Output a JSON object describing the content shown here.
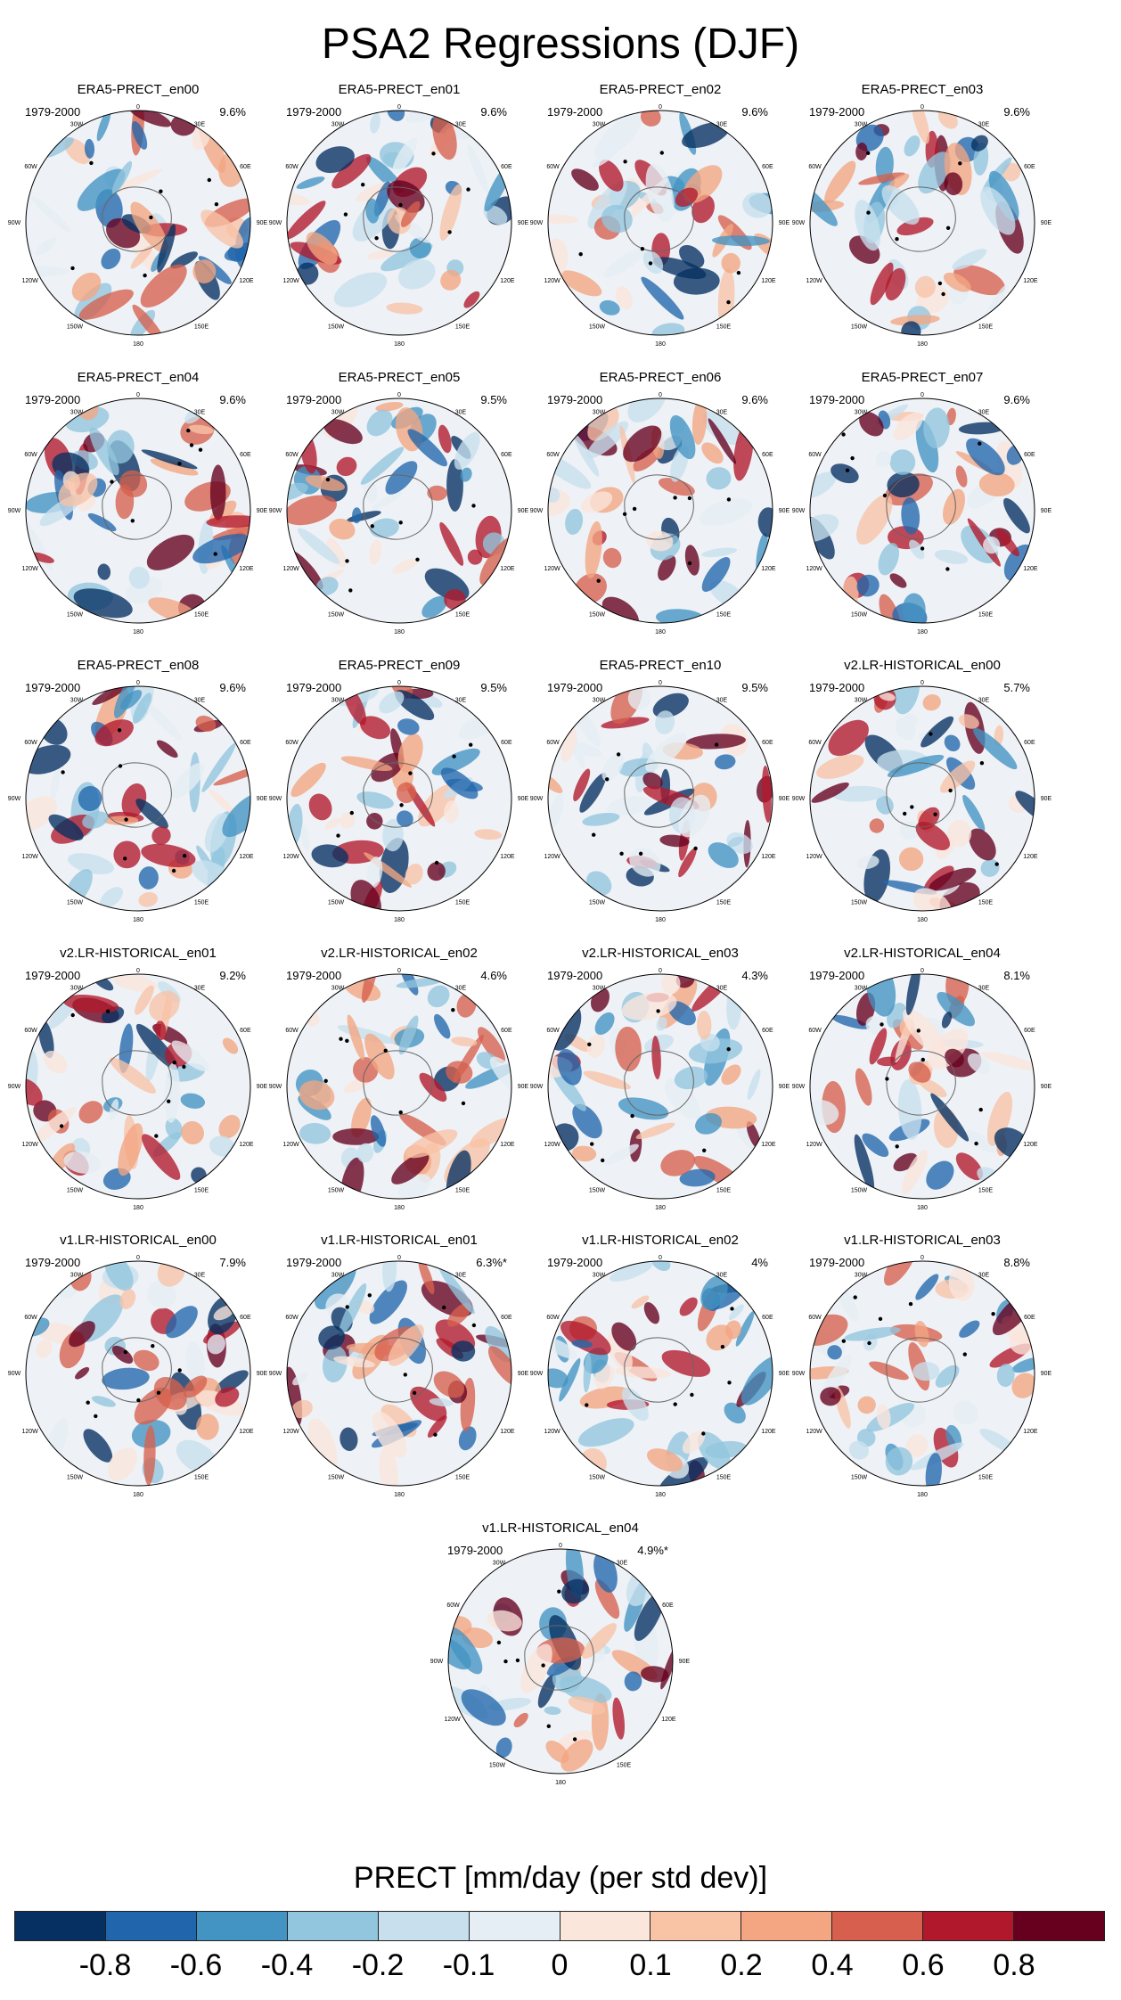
{
  "title": "PSA2 Regressions (DJF)",
  "chart_data": {
    "type": "heatmap",
    "projection": "south-polar-stereographic",
    "variable": "PRECT",
    "colorbar_label": "PRECT [mm/day (per std dev)]",
    "colorbar_ticks": [
      "-0.8",
      "-0.6",
      "-0.4",
      "-0.2",
      "-0.1",
      "0",
      "0.1",
      "0.2",
      "0.4",
      "0.6",
      "0.8"
    ],
    "colorbar_colors": [
      "#053061",
      "#2166ac",
      "#4393c3",
      "#92c5de",
      "#c8e0ee",
      "#e6eef5",
      "#fbe6dc",
      "#f9c3a6",
      "#f4a582",
      "#d6604d",
      "#b2182b",
      "#67001f"
    ],
    "map_labels": {
      "top": "0",
      "upper_left": "30W",
      "upper_right": "30E",
      "mid_left": "60W",
      "mid_right": "60E",
      "left": "90W",
      "right": "90E",
      "lower_left": "120W",
      "lower_right": "120E",
      "bottom_left": "150W",
      "bottom_right": "150E",
      "bottom": "180"
    },
    "panels": [
      {
        "name": "ERA5-PRECT_en00",
        "period": "1979-2000",
        "variance": "9.6%"
      },
      {
        "name": "ERA5-PRECT_en01",
        "period": "1979-2000",
        "variance": "9.6%"
      },
      {
        "name": "ERA5-PRECT_en02",
        "period": "1979-2000",
        "variance": "9.6%"
      },
      {
        "name": "ERA5-PRECT_en03",
        "period": "1979-2000",
        "variance": "9.6%"
      },
      {
        "name": "ERA5-PRECT_en04",
        "period": "1979-2000",
        "variance": "9.6%"
      },
      {
        "name": "ERA5-PRECT_en05",
        "period": "1979-2000",
        "variance": "9.5%"
      },
      {
        "name": "ERA5-PRECT_en06",
        "period": "1979-2000",
        "variance": "9.6%"
      },
      {
        "name": "ERA5-PRECT_en07",
        "period": "1979-2000",
        "variance": "9.6%"
      },
      {
        "name": "ERA5-PRECT_en08",
        "period": "1979-2000",
        "variance": "9.6%"
      },
      {
        "name": "ERA5-PRECT_en09",
        "period": "1979-2000",
        "variance": "9.5%"
      },
      {
        "name": "ERA5-PRECT_en10",
        "period": "1979-2000",
        "variance": "9.5%"
      },
      {
        "name": "v2.LR-HISTORICAL_en00",
        "period": "1979-2000",
        "variance": "5.7%"
      },
      {
        "name": "v2.LR-HISTORICAL_en01",
        "period": "1979-2000",
        "variance": "9.2%"
      },
      {
        "name": "v2.LR-HISTORICAL_en02",
        "period": "1979-2000",
        "variance": "4.6%"
      },
      {
        "name": "v2.LR-HISTORICAL_en03",
        "period": "1979-2000",
        "variance": "4.3%"
      },
      {
        "name": "v2.LR-HISTORICAL_en04",
        "period": "1979-2000",
        "variance": "8.1%"
      },
      {
        "name": "v1.LR-HISTORICAL_en00",
        "period": "1979-2000",
        "variance": "7.9%"
      },
      {
        "name": "v1.LR-HISTORICAL_en01",
        "period": "1979-2000",
        "variance": "6.3%*"
      },
      {
        "name": "v1.LR-HISTORICAL_en02",
        "period": "1979-2000",
        "variance": "4%"
      },
      {
        "name": "v1.LR-HISTORICAL_en03",
        "period": "1979-2000",
        "variance": "8.8%"
      },
      {
        "name": "v1.LR-HISTORICAL_en04",
        "period": "1979-2000",
        "variance": "4.9%*"
      }
    ]
  }
}
